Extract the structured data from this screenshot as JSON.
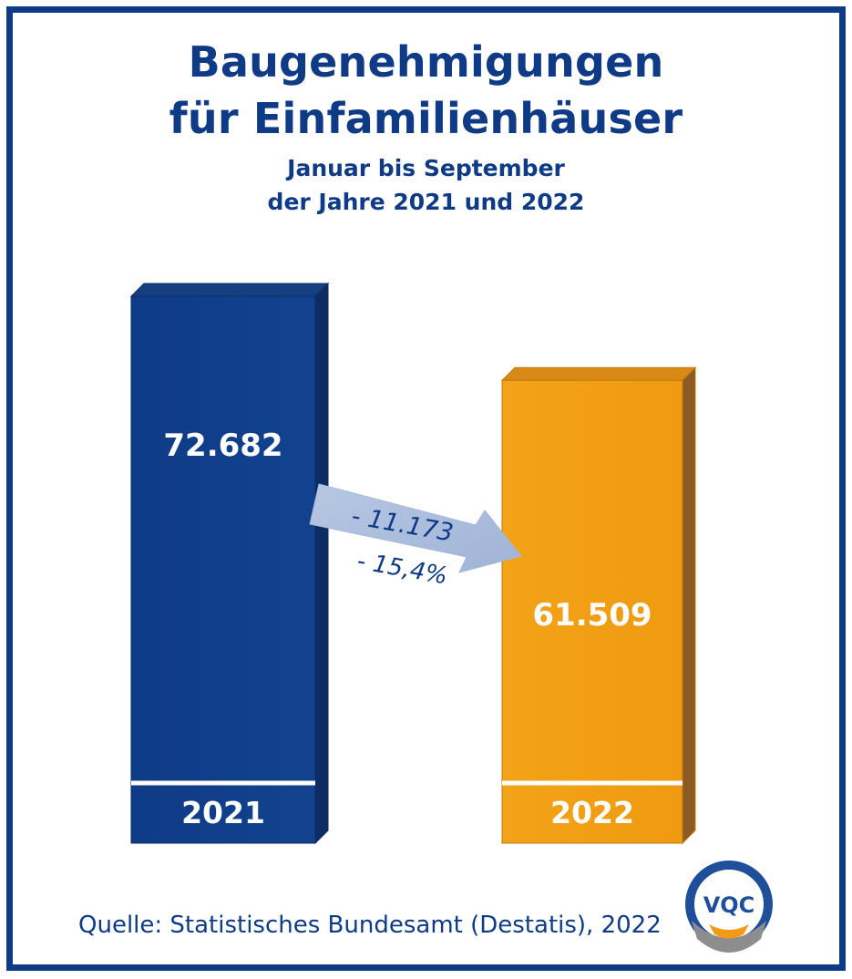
{
  "header": {
    "title_line1": "Baugenehmigungen",
    "title_line2": "für Einfamilienhäuser",
    "subtitle_line1": "Januar bis September",
    "subtitle_line2": "der Jahre 2021 und 2022"
  },
  "chart_data": {
    "type": "bar",
    "title": "Baugenehmigungen für Einfamilienhäuser",
    "subtitle": "Januar bis September der Jahre 2021 und 2022",
    "categories": [
      "2021",
      "2022"
    ],
    "values": [
      72682,
      61509
    ],
    "value_labels": [
      "72.682",
      "61.509"
    ],
    "ylim": [
      0,
      72682
    ],
    "grid": false,
    "legend": "none",
    "colors": [
      "#0f3b86",
      "#f29e12"
    ],
    "annotations": [
      {
        "text": "- 11.173"
      },
      {
        "text": "- 15,4%"
      }
    ]
  },
  "colors": {
    "frame": "#0f3b86",
    "bar_2021": "#0f3b86",
    "bar_2022": "#f29e12",
    "arrow": "#a9bcd9",
    "text": "#0f3b86"
  },
  "footer": {
    "source": "Quelle: Statistisches Bundesamt (Destatis), 2022"
  },
  "logo": {
    "text": "VQC",
    "icon": "vqc-logo"
  }
}
